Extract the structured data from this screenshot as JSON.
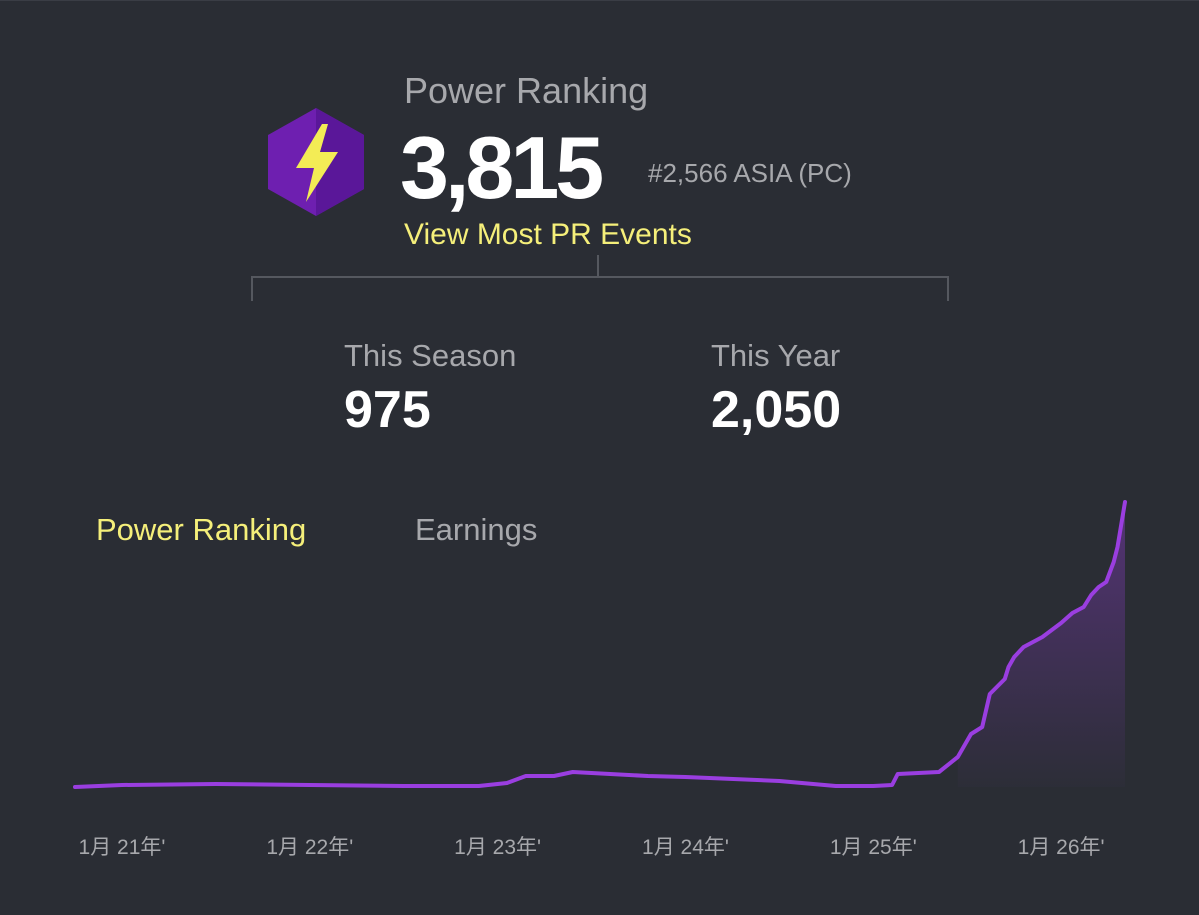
{
  "header": {
    "title": "Power Ranking",
    "value": "3,815",
    "rank": "#2,566 ASIA (PC)",
    "link": "View Most PR Events",
    "icon": "lightning-hexagon-icon"
  },
  "stats": {
    "season": {
      "label": "This Season",
      "value": "975"
    },
    "year": {
      "label": "This Year",
      "value": "2,050"
    }
  },
  "tabs": [
    {
      "label": "Power Ranking",
      "active": true
    },
    {
      "label": "Earnings",
      "active": false
    }
  ],
  "colors": {
    "background": "#2a2d34",
    "accent": "#f5ef7a",
    "line": "#9a3ee0",
    "muted": "#a7a8ac"
  },
  "chart_data": {
    "type": "area",
    "x_tick_labels": [
      "1月 21年'",
      "1月 22年'",
      "1月 23年'",
      "1月 24年'",
      "1月 25年'",
      "1月 26年'"
    ],
    "x": [
      2020.75,
      2021.0,
      2021.5,
      2022.0,
      2022.5,
      2022.9,
      2023.0,
      2023.05,
      2023.15,
      2023.3,
      2023.4,
      2023.5,
      2023.8,
      2024.0,
      2024.5,
      2024.8,
      2025.0,
      2025.1,
      2025.13,
      2025.35,
      2025.45,
      2025.52,
      2025.58,
      2025.62,
      2025.7,
      2025.72,
      2025.75,
      2025.8,
      2025.9,
      2026.0,
      2026.06,
      2026.12,
      2026.16,
      2026.2,
      2026.24,
      2026.28,
      2026.3,
      2026.34
    ],
    "values": [
      0,
      20,
      30,
      20,
      10,
      10,
      30,
      40,
      110,
      110,
      150,
      140,
      110,
      100,
      60,
      10,
      10,
      20,
      130,
      150,
      300,
      530,
      600,
      930,
      1080,
      1200,
      1300,
      1400,
      1500,
      1640,
      1740,
      1800,
      1920,
      2000,
      2050,
      2250,
      2400,
      2850
    ],
    "xlim": [
      2020.75,
      2026.34
    ],
    "ylim": [
      0,
      2850
    ],
    "grid": false,
    "color": "#9a3ee0"
  }
}
